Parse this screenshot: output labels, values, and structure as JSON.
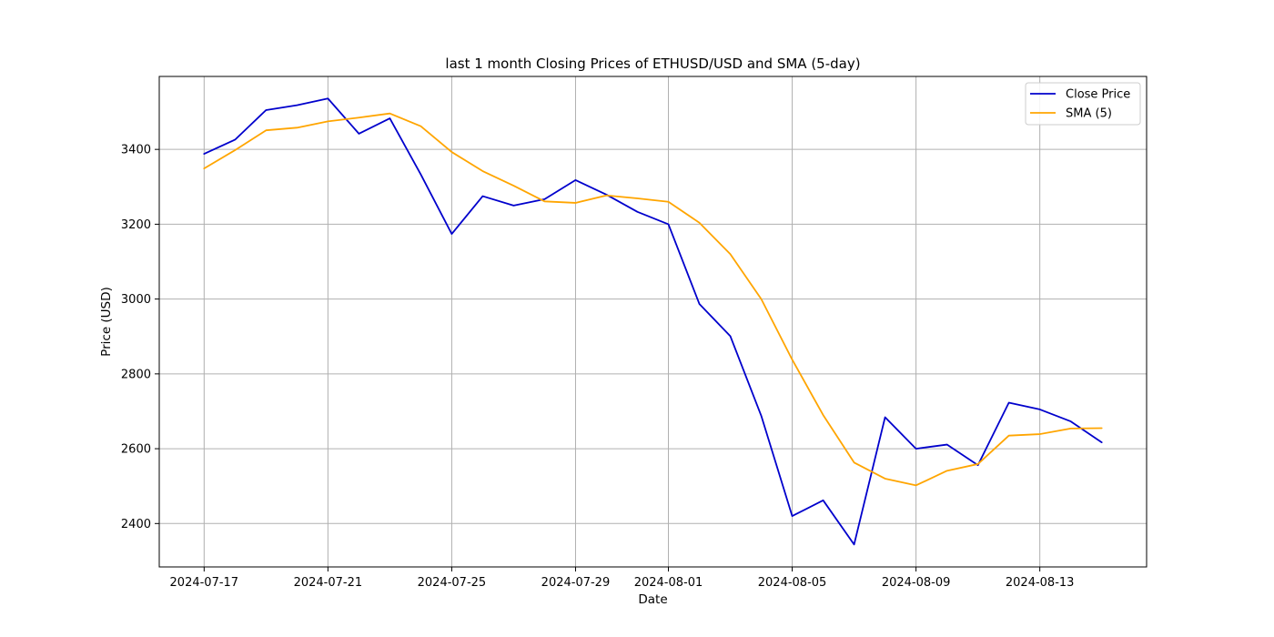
{
  "chart_data": {
    "type": "line",
    "title": "last 1 month Closing Prices of ETHUSD/USD and SMA (5-day)",
    "xlabel": "Date",
    "ylabel": "Price (USD)",
    "x": [
      "2024-07-17",
      "2024-07-18",
      "2024-07-19",
      "2024-07-20",
      "2024-07-21",
      "2024-07-22",
      "2024-07-23",
      "2024-07-24",
      "2024-07-25",
      "2024-07-26",
      "2024-07-27",
      "2024-07-28",
      "2024-07-29",
      "2024-07-30",
      "2024-07-31",
      "2024-08-01",
      "2024-08-02",
      "2024-08-03",
      "2024-08-04",
      "2024-08-05",
      "2024-08-06",
      "2024-08-07",
      "2024-08-08",
      "2024-08-09",
      "2024-08-10",
      "2024-08-11",
      "2024-08-12",
      "2024-08-13",
      "2024-08-14",
      "2024-08-15"
    ],
    "xlim": [
      "2024-07-15.55",
      "2024-08-16.45"
    ],
    "xticks": [
      "2024-07-17",
      "2024-07-21",
      "2024-07-25",
      "2024-07-29",
      "2024-08-01",
      "2024-08-05",
      "2024-08-09",
      "2024-08-13"
    ],
    "ylim": [
      2284,
      3595
    ],
    "yticks": [
      2400,
      2600,
      2800,
      3000,
      3200,
      3400
    ],
    "grid": true,
    "legend_position": "top-right",
    "series": [
      {
        "name": "Close Price",
        "color": "#0000cc",
        "values": [
          3388,
          3426,
          3505,
          3518,
          3536,
          3442,
          3483,
          3333,
          3174,
          3275,
          3250,
          3267,
          3318,
          3279,
          3233,
          3200,
          2987,
          2901,
          2688,
          2420,
          2462,
          2344,
          2684,
          2600,
          2611,
          2556,
          2723,
          2705,
          2673,
          2617
        ]
      },
      {
        "name": "SMA (5)",
        "color": "#ffa500",
        "values": [
          3349,
          3398,
          3451,
          3458,
          3475,
          3485,
          3496,
          3462,
          3393,
          3342,
          3303,
          3261,
          3257,
          3277,
          3269,
          3260,
          3204,
          3120,
          3000,
          2838,
          2690,
          2563,
          2520,
          2502,
          2541,
          2559,
          2635,
          2639,
          2654,
          2655
        ]
      }
    ]
  }
}
